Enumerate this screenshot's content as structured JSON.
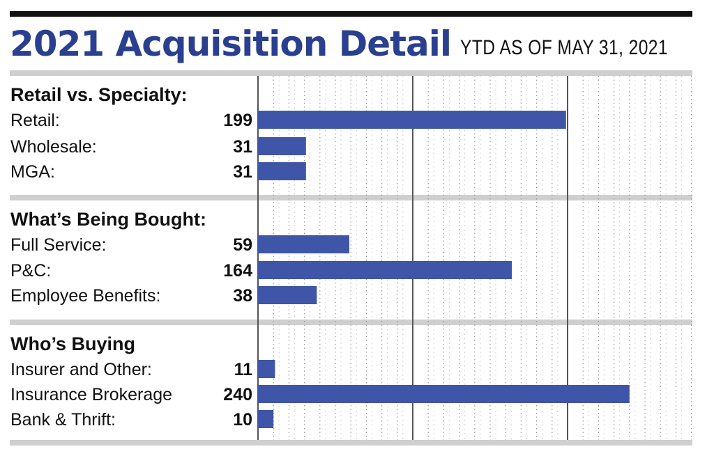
{
  "title": "2021 Acquisition Detail",
  "subtitle": "YTD AS OF MAY 31, 2021",
  "colors": {
    "bar": "#3f56a8",
    "title": "#2a3f8f",
    "band": "#cfcfcf"
  },
  "chart_data": {
    "type": "bar",
    "orientation": "horizontal",
    "title": "2021 Acquisition Detail",
    "subtitle": "YTD AS OF MAY 31, 2021",
    "xlim": [
      0,
      250
    ],
    "grid": true,
    "groups": [
      {
        "name": "Retail vs. Specialty:",
        "categories": [
          "Retail:",
          "Wholesale:",
          "MGA:"
        ],
        "values": [
          199,
          31,
          31
        ]
      },
      {
        "name": "What’s Being Bought:",
        "categories": [
          "Full Service:",
          "P&C:",
          "Employee Benefits:"
        ],
        "values": [
          59,
          164,
          38
        ]
      },
      {
        "name": "Who’s Buying",
        "categories": [
          "Insurer and Other:",
          "Insurance Brokerage",
          "Bank & Thrift:"
        ],
        "values": [
          11,
          240,
          10
        ]
      }
    ]
  }
}
